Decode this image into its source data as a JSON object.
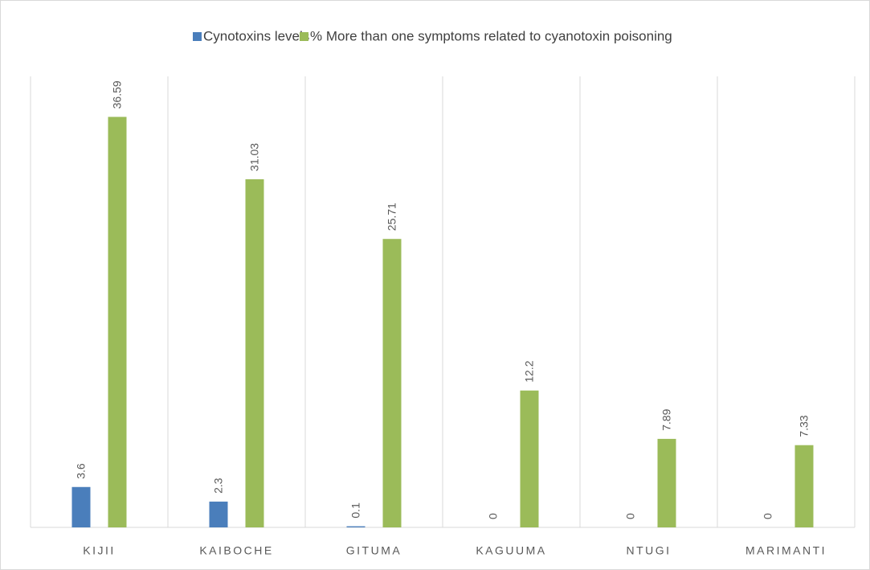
{
  "chart_data": {
    "type": "bar",
    "categories": [
      "KIJII",
      "KAIBOCHE",
      "GITUMA",
      "KAGUUMA",
      "NTUGI",
      "MARIMANTI"
    ],
    "series": [
      {
        "name": "Cynotoxins levels",
        "color": "#4a7ebb",
        "values": [
          3.6,
          2.3,
          0.1,
          0,
          0,
          0
        ]
      },
      {
        "name": "% More than one symptoms related to cyanotoxin poisoning",
        "color": "#9bbb59",
        "values": [
          36.59,
          31.03,
          25.71,
          12.2,
          7.89,
          7.33
        ]
      }
    ],
    "ylim": [
      0,
      40.2
    ],
    "legend": "top"
  }
}
